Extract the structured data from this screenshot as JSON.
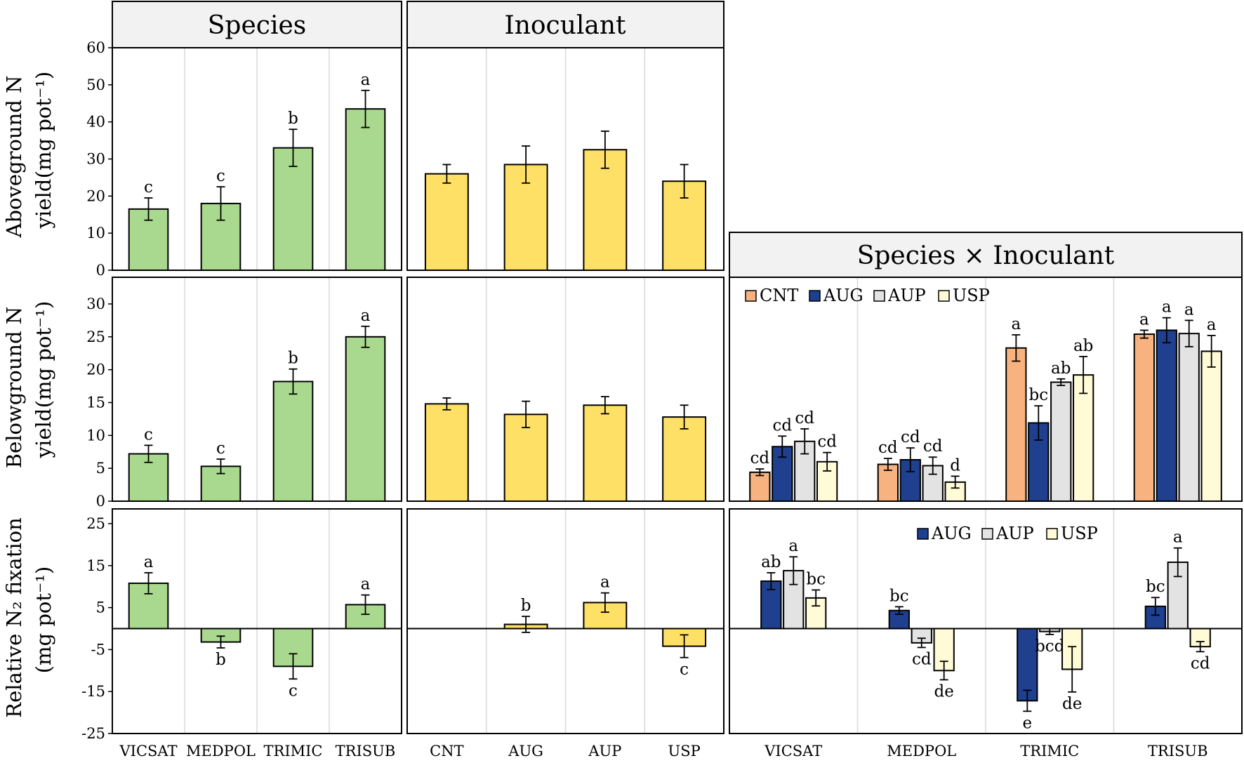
{
  "headers": {
    "species": "Species",
    "inoculant": "Inoculant",
    "interaction": "Species × Inoculant"
  },
  "row_labels": {
    "above": {
      "line1": "Aboveground N",
      "line2": "yield",
      "units": "(mg pot⁻¹)"
    },
    "below": {
      "line1": "Belowground N",
      "line2": "yield",
      "units": "(mg pot⁻¹)"
    },
    "fix": {
      "line1": "Relative N₂ fixation",
      "units": "(mg pot⁻¹)"
    }
  },
  "colors": {
    "species_bar": "#a9d98e",
    "inoculant_bar": "#ffe066",
    "CNT": "#f7b27f",
    "AUG": "#1f3f8f",
    "AUP": "#e3e3e3",
    "USP": "#fffbd6",
    "grid": "#d9d9d9"
  },
  "chart_data": [
    {
      "id": "above-species",
      "type": "bar",
      "categories": [
        "VICSAT",
        "MEDPOL",
        "TRIMIC",
        "TRISUB"
      ],
      "values": [
        16.5,
        18.0,
        33.0,
        43.5
      ],
      "errors": [
        3.0,
        4.5,
        5.0,
        5.0
      ],
      "letters": [
        "c",
        "c",
        "b",
        "a"
      ],
      "ylim": [
        0,
        60
      ],
      "yticks": [
        0,
        10,
        20,
        30,
        40,
        50,
        60
      ],
      "ylabel": "Aboveground N yield (mg pot⁻¹)"
    },
    {
      "id": "above-inoculant",
      "type": "bar",
      "categories": [
        "CNT",
        "AUG",
        "AUP",
        "USP"
      ],
      "values": [
        26.0,
        28.5,
        32.5,
        24.0
      ],
      "errors": [
        2.5,
        5.0,
        5.0,
        4.5
      ],
      "letters": [
        "",
        "",
        "",
        ""
      ],
      "ylim": [
        0,
        60
      ]
    },
    {
      "id": "below-species",
      "type": "bar",
      "categories": [
        "VICSAT",
        "MEDPOL",
        "TRIMIC",
        "TRISUB"
      ],
      "values": [
        7.2,
        5.3,
        18.2,
        25.0
      ],
      "errors": [
        1.3,
        1.1,
        1.9,
        1.6
      ],
      "letters": [
        "c",
        "c",
        "b",
        "a"
      ],
      "ylim": [
        0,
        33
      ],
      "yticks": [
        0,
        5,
        10,
        15,
        20,
        25,
        30
      ],
      "ylabel": "Belowground N yield (mg pot⁻¹)"
    },
    {
      "id": "below-inoculant",
      "type": "bar",
      "categories": [
        "CNT",
        "AUG",
        "AUP",
        "USP"
      ],
      "values": [
        14.8,
        13.2,
        14.6,
        12.8
      ],
      "errors": [
        0.9,
        2.0,
        1.3,
        1.8
      ],
      "letters": [
        "",
        "",
        "",
        ""
      ],
      "ylim": [
        0,
        33
      ]
    },
    {
      "id": "below-interaction",
      "type": "bar",
      "categories": [
        "VICSAT",
        "MEDPOL",
        "TRIMIC",
        "TRISUB"
      ],
      "legend": [
        "CNT",
        "AUG",
        "AUP",
        "USP"
      ],
      "series": [
        {
          "name": "CNT",
          "values": [
            4.4,
            5.6,
            23.3,
            25.4
          ],
          "errors": [
            0.5,
            0.9,
            2.0,
            0.6
          ],
          "letters": [
            "cd",
            "cd",
            "a",
            "a"
          ]
        },
        {
          "name": "AUG",
          "values": [
            8.3,
            6.3,
            11.9,
            26.0
          ],
          "errors": [
            1.6,
            1.8,
            2.6,
            1.9
          ],
          "letters": [
            "cd",
            "cd",
            "bc",
            "a"
          ]
        },
        {
          "name": "AUP",
          "values": [
            9.1,
            5.4,
            18.1,
            25.5
          ],
          "errors": [
            1.9,
            1.3,
            0.5,
            2.0
          ],
          "letters": [
            "cd",
            "cd",
            "ab",
            "a"
          ]
        },
        {
          "name": "USP",
          "values": [
            6.0,
            2.9,
            19.2,
            22.8
          ],
          "errors": [
            1.4,
            0.9,
            2.8,
            2.4
          ],
          "letters": [
            "cd",
            "d",
            "ab",
            "a"
          ]
        }
      ],
      "ylim": [
        0,
        33
      ]
    },
    {
      "id": "fix-species",
      "type": "bar",
      "categories": [
        "VICSAT",
        "MEDPOL",
        "TRIMIC",
        "TRISUB"
      ],
      "values": [
        10.8,
        -3.2,
        -9.0,
        5.7
      ],
      "errors": [
        2.5,
        1.4,
        3.0,
        2.3
      ],
      "letters": [
        "a",
        "b",
        "c",
        "a"
      ],
      "ylim": [
        -25,
        27
      ],
      "yticks": [
        -25,
        -15,
        -5,
        5,
        15,
        25
      ],
      "ylabel": "Relative N₂ fixation (mg pot⁻¹)"
    },
    {
      "id": "fix-inoculant",
      "type": "bar",
      "categories": [
        "CNT",
        "AUG",
        "AUP",
        "USP"
      ],
      "values": [
        0,
        1.0,
        6.2,
        -4.2
      ],
      "errors": [
        0,
        1.9,
        2.3,
        2.7
      ],
      "letters": [
        "",
        "b",
        "a",
        "c"
      ],
      "ylim": [
        -25,
        27
      ]
    },
    {
      "id": "fix-interaction",
      "type": "bar",
      "categories": [
        "VICSAT",
        "MEDPOL",
        "TRIMIC",
        "TRISUB"
      ],
      "legend": [
        "AUG",
        "AUP",
        "USP"
      ],
      "series": [
        {
          "name": "AUG",
          "values": [
            11.3,
            4.3,
            -17.2,
            5.3
          ],
          "errors": [
            2.0,
            0.9,
            2.5,
            2.1
          ],
          "letters": [
            "ab",
            "bc",
            "e",
            "bc"
          ]
        },
        {
          "name": "AUP",
          "values": [
            13.8,
            -3.4,
            -0.7,
            15.8
          ],
          "errors": [
            3.3,
            1.1,
            0.7,
            3.4
          ],
          "letters": [
            "a",
            "cd",
            "bcd",
            "a"
          ]
        },
        {
          "name": "USP",
          "values": [
            7.3,
            -10.0,
            -9.7,
            -4.3
          ],
          "errors": [
            1.9,
            2.2,
            5.4,
            1.2
          ],
          "letters": [
            "bc",
            "de",
            "de",
            "cd"
          ]
        }
      ],
      "ylim": [
        -25,
        27
      ]
    }
  ]
}
